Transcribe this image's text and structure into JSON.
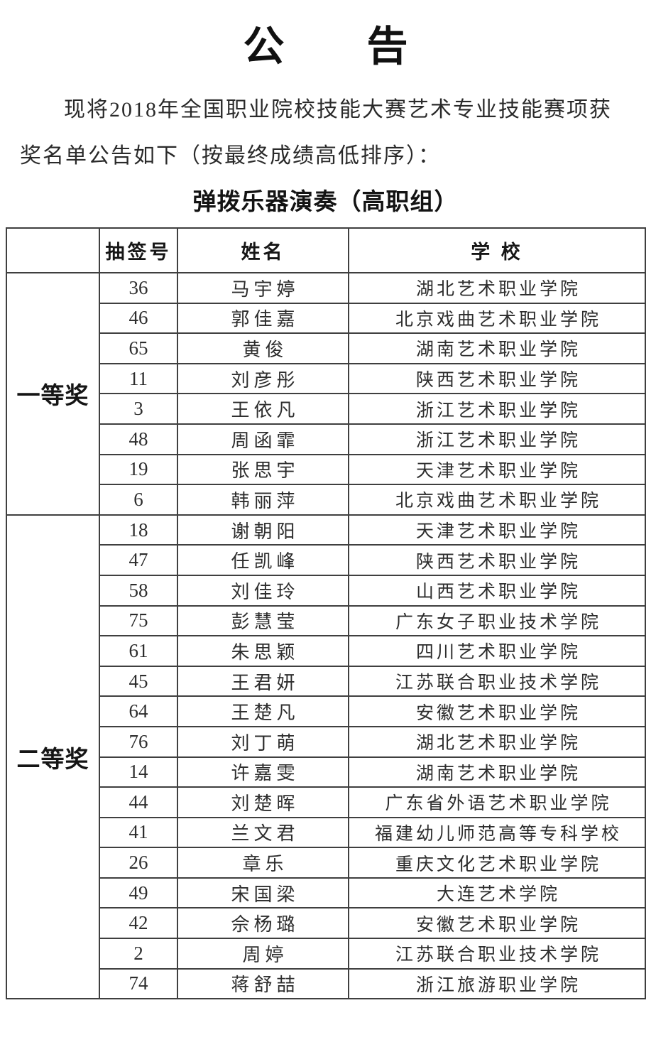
{
  "page": {
    "title": "公　　告",
    "intro": "现将2018年全国职业院校技能大赛艺术专业技能赛项获奖名单公告如下（按最终成绩高低排序）：",
    "section_title": "弹拨乐器演奏（高职组）"
  },
  "table": {
    "headers": {
      "award": "",
      "draw_no": "抽签号",
      "name": "姓名",
      "school": "学 校"
    },
    "groups": [
      {
        "award": "一等奖",
        "rows": [
          {
            "draw_no": "36",
            "name": "马宇婷",
            "school": "湖北艺术职业学院"
          },
          {
            "draw_no": "46",
            "name": "郭佳嘉",
            "school": "北京戏曲艺术职业学院"
          },
          {
            "draw_no": "65",
            "name": "黄俊",
            "school": "湖南艺术职业学院"
          },
          {
            "draw_no": "11",
            "name": "刘彦彤",
            "school": "陕西艺术职业学院"
          },
          {
            "draw_no": "3",
            "name": "王依凡",
            "school": "浙江艺术职业学院"
          },
          {
            "draw_no": "48",
            "name": "周函霏",
            "school": "浙江艺术职业学院"
          },
          {
            "draw_no": "19",
            "name": "张思宇",
            "school": "天津艺术职业学院"
          },
          {
            "draw_no": "6",
            "name": "韩丽萍",
            "school": "北京戏曲艺术职业学院"
          }
        ]
      },
      {
        "award": "二等奖",
        "rows": [
          {
            "draw_no": "18",
            "name": "谢朝阳",
            "school": "天津艺术职业学院"
          },
          {
            "draw_no": "47",
            "name": "任凯峰",
            "school": "陕西艺术职业学院"
          },
          {
            "draw_no": "58",
            "name": "刘佳玲",
            "school": "山西艺术职业学院"
          },
          {
            "draw_no": "75",
            "name": "彭慧莹",
            "school": "广东女子职业技术学院"
          },
          {
            "draw_no": "61",
            "name": "朱思颖",
            "school": "四川艺术职业学院"
          },
          {
            "draw_no": "45",
            "name": "王君妍",
            "school": "江苏联合职业技术学院"
          },
          {
            "draw_no": "64",
            "name": "王楚凡",
            "school": "安徽艺术职业学院"
          },
          {
            "draw_no": "76",
            "name": "刘丁萌",
            "school": "湖北艺术职业学院"
          },
          {
            "draw_no": "14",
            "name": "许嘉雯",
            "school": "湖南艺术职业学院"
          },
          {
            "draw_no": "44",
            "name": "刘楚晖",
            "school": "广东省外语艺术职业学院"
          },
          {
            "draw_no": "41",
            "name": "兰文君",
            "school": "福建幼儿师范高等专科学校"
          },
          {
            "draw_no": "26",
            "name": "章乐",
            "school": "重庆文化艺术职业学院"
          },
          {
            "draw_no": "49",
            "name": "宋国梁",
            "school": "大连艺术学院"
          },
          {
            "draw_no": "42",
            "name": "佘杨璐",
            "school": "安徽艺术职业学院"
          },
          {
            "draw_no": "2",
            "name": "周婷",
            "school": "江苏联合职业技术学院"
          },
          {
            "draw_no": "74",
            "name": "蒋舒喆",
            "school": "浙江旅游职业学院"
          }
        ]
      }
    ]
  }
}
